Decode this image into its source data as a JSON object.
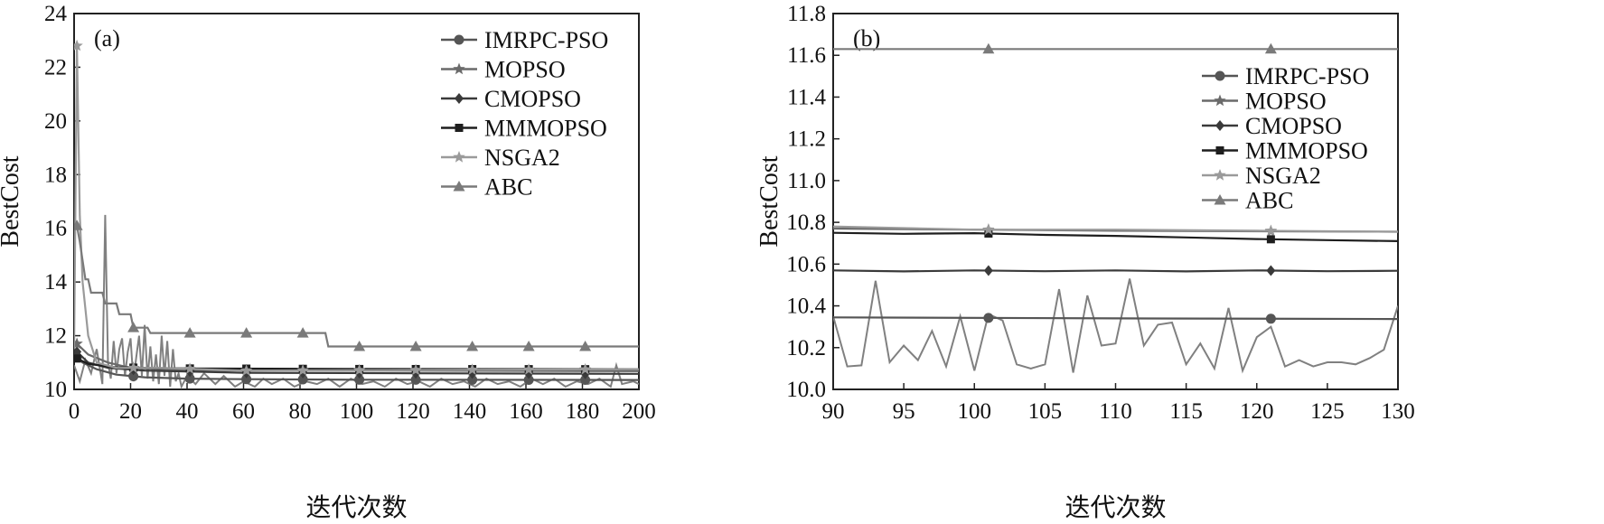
{
  "colors": {
    "IMRPC-PSO": "#555555",
    "MOPSO": "#6a6a6a",
    "CMOPSO": "#3a3a3a",
    "MMMOPSO": "#1e1e1e",
    "NSGA2": "#9a9a9a",
    "ABC": "#7a7a7a",
    "noise": "#808080"
  },
  "chart_data": [
    {
      "type": "line",
      "panel_label": "(a)",
      "title": "",
      "xlabel": "迭代次数",
      "ylabel": "BestCost",
      "xlim": [
        0,
        200
      ],
      "ylim": [
        10,
        24
      ],
      "xticks": [
        0,
        20,
        40,
        60,
        80,
        100,
        120,
        140,
        160,
        180,
        200
      ],
      "yticks": [
        10,
        12,
        14,
        16,
        18,
        20,
        22,
        24
      ],
      "legend_position": "top-right",
      "marker_x": [
        1,
        21,
        41,
        61,
        81,
        101,
        121,
        141,
        161,
        181
      ],
      "series": [
        {
          "name": "IMRPC-PSO",
          "marker": "circle",
          "points": [
            [
              0,
              11.3
            ],
            [
              3,
              11.0
            ],
            [
              8,
              10.75
            ],
            [
              15,
              10.55
            ],
            [
              25,
              10.45
            ],
            [
              40,
              10.4
            ],
            [
              60,
              10.38
            ],
            [
              100,
              10.36
            ],
            [
              200,
              10.35
            ]
          ]
        },
        {
          "name": "MOPSO",
          "marker": "star",
          "points": [
            [
              0,
              11.8
            ],
            [
              5,
              11.3
            ],
            [
              12,
              11.0
            ],
            [
              20,
              10.8
            ],
            [
              40,
              10.72
            ],
            [
              100,
              10.7
            ],
            [
              200,
              10.68
            ]
          ]
        },
        {
          "name": "CMOPSO",
          "marker": "diamond",
          "points": [
            [
              0,
              11.5
            ],
            [
              5,
              11.0
            ],
            [
              12,
              10.8
            ],
            [
              25,
              10.7
            ],
            [
              60,
              10.62
            ],
            [
              120,
              10.6
            ],
            [
              200,
              10.58
            ]
          ]
        },
        {
          "name": "MMMOPSO",
          "marker": "square",
          "points": [
            [
              0,
              11.2
            ],
            [
              5,
              10.95
            ],
            [
              15,
              10.82
            ],
            [
              40,
              10.78
            ],
            [
              100,
              10.76
            ],
            [
              200,
              10.75
            ]
          ]
        },
        {
          "name": "NSGA2",
          "marker": "star",
          "points": [
            [
              0,
              11.5
            ],
            [
              1,
              22.8
            ],
            [
              2,
              16.5
            ],
            [
              3,
              14.0
            ],
            [
              5,
              12.0
            ],
            [
              8,
              11.0
            ],
            [
              15,
              10.8
            ],
            [
              30,
              10.8
            ],
            [
              60,
              10.7
            ],
            [
              200,
              10.75
            ]
          ]
        },
        {
          "name": "ABC",
          "marker": "triangle",
          "points": [
            [
              0,
              16.1
            ],
            [
              1,
              16.1
            ],
            [
              2,
              15.5
            ],
            [
              4,
              14.1
            ],
            [
              5,
              14.1
            ],
            [
              6,
              13.6
            ],
            [
              10,
              13.6
            ],
            [
              11,
              13.2
            ],
            [
              15,
              13.2
            ],
            [
              16,
              12.8
            ],
            [
              20,
              12.8
            ],
            [
              21,
              12.3
            ],
            [
              26,
              12.3
            ],
            [
              27,
              12.1
            ],
            [
              89,
              12.1
            ],
            [
              90,
              11.6
            ],
            [
              200,
              11.6
            ]
          ]
        }
      ],
      "noise": {
        "points": [
          [
            0,
            10.9
          ],
          [
            2,
            10.3
          ],
          [
            4,
            11.1
          ],
          [
            6,
            10.6
          ],
          [
            8,
            11.5
          ],
          [
            10,
            10.2
          ],
          [
            11,
            16.5
          ],
          [
            12,
            11.0
          ],
          [
            13,
            10.4
          ],
          [
            14,
            11.8
          ],
          [
            15,
            10.6
          ],
          [
            16,
            11.5
          ],
          [
            17,
            11.9
          ],
          [
            18,
            10.5
          ],
          [
            19,
            11.4
          ],
          [
            20,
            11.9
          ],
          [
            21,
            10.3
          ],
          [
            22,
            11.2
          ],
          [
            23,
            12.0
          ],
          [
            24,
            10.5
          ],
          [
            25,
            12.4
          ],
          [
            26,
            10.4
          ],
          [
            27,
            11.6
          ],
          [
            28,
            10.3
          ],
          [
            29,
            11.3
          ],
          [
            30,
            10.2
          ],
          [
            31,
            12.0
          ],
          [
            32,
            10.5
          ],
          [
            33,
            11.8
          ],
          [
            34,
            10.1
          ],
          [
            35,
            11.5
          ],
          [
            36,
            10.3
          ],
          [
            37,
            10.6
          ],
          [
            38,
            10.1
          ],
          [
            40,
            10.5
          ],
          [
            43,
            10.2
          ],
          [
            46,
            10.6
          ],
          [
            50,
            10.2
          ],
          [
            53,
            10.5
          ],
          [
            57,
            10.1
          ],
          [
            60,
            10.3
          ],
          [
            64,
            10.1
          ],
          [
            67,
            10.4
          ],
          [
            70,
            10.2
          ],
          [
            74,
            10.4
          ],
          [
            78,
            10.1
          ],
          [
            82,
            10.3
          ],
          [
            86,
            10.2
          ],
          [
            90,
            10.4
          ],
          [
            94,
            10.1
          ],
          [
            98,
            10.4
          ],
          [
            102,
            10.2
          ],
          [
            106,
            10.3
          ],
          [
            110,
            10.1
          ],
          [
            114,
            10.4
          ],
          [
            118,
            10.2
          ],
          [
            122,
            10.3
          ],
          [
            126,
            10.1
          ],
          [
            130,
            10.4
          ],
          [
            134,
            10.2
          ],
          [
            138,
            10.3
          ],
          [
            142,
            10.1
          ],
          [
            146,
            10.4
          ],
          [
            150,
            10.2
          ],
          [
            154,
            10.3
          ],
          [
            158,
            10.1
          ],
          [
            162,
            10.4
          ],
          [
            166,
            10.2
          ],
          [
            170,
            10.4
          ],
          [
            174,
            10.1
          ],
          [
            178,
            10.3
          ],
          [
            182,
            10.2
          ],
          [
            186,
            10.4
          ],
          [
            190,
            10.1
          ],
          [
            192,
            10.9
          ],
          [
            194,
            10.2
          ],
          [
            198,
            10.3
          ],
          [
            200,
            10.2
          ]
        ]
      }
    },
    {
      "type": "line",
      "panel_label": "(b)",
      "title": "",
      "xlabel": "迭代次数",
      "ylabel": "BestCost",
      "xlim": [
        90,
        130
      ],
      "ylim": [
        10.0,
        11.8
      ],
      "xticks": [
        90,
        95,
        100,
        105,
        110,
        115,
        120,
        125,
        130
      ],
      "yticks": [
        10.0,
        10.2,
        10.4,
        10.6,
        10.8,
        11.0,
        11.2,
        11.4,
        11.6,
        11.8
      ],
      "legend_position": "top-right",
      "marker_x": [
        101,
        121
      ],
      "series": [
        {
          "name": "IMRPC-PSO",
          "marker": "circle",
          "points": [
            [
              90,
              10.345
            ],
            [
              110,
              10.34
            ],
            [
              130,
              10.337
            ]
          ]
        },
        {
          "name": "MOPSO",
          "marker": "star",
          "points": [
            [
              90,
              10.77
            ],
            [
              110,
              10.76
            ],
            [
              130,
              10.755
            ]
          ]
        },
        {
          "name": "CMOPSO",
          "marker": "diamond",
          "points": [
            [
              90,
              10.57
            ],
            [
              95,
              10.565
            ],
            [
              100,
              10.57
            ],
            [
              105,
              10.566
            ],
            [
              110,
              10.57
            ],
            [
              115,
              10.565
            ],
            [
              120,
              10.57
            ],
            [
              125,
              10.566
            ],
            [
              130,
              10.568
            ]
          ]
        },
        {
          "name": "MMMOPSO",
          "marker": "square",
          "points": [
            [
              90,
              10.75
            ],
            [
              95,
              10.745
            ],
            [
              100,
              10.748
            ],
            [
              105,
              10.74
            ],
            [
              110,
              10.735
            ],
            [
              115,
              10.728
            ],
            [
              120,
              10.72
            ],
            [
              125,
              10.715
            ],
            [
              130,
              10.71
            ]
          ]
        },
        {
          "name": "NSGA2",
          "marker": "star",
          "points": [
            [
              90,
              10.78
            ],
            [
              100,
              10.765
            ],
            [
              110,
              10.765
            ],
            [
              120,
              10.76
            ],
            [
              130,
              10.755
            ]
          ]
        },
        {
          "name": "ABC",
          "marker": "triangle",
          "points": [
            [
              90,
              11.63
            ],
            [
              130,
              11.63
            ]
          ]
        }
      ],
      "noise": {
        "points": [
          [
            90,
            10.35
          ],
          [
            91,
            10.11
          ],
          [
            92,
            10.115
          ],
          [
            93,
            10.52
          ],
          [
            94,
            10.13
          ],
          [
            95,
            10.21
          ],
          [
            96,
            10.14
          ],
          [
            97,
            10.28
          ],
          [
            98,
            10.11
          ],
          [
            99,
            10.35
          ],
          [
            100,
            10.09
          ],
          [
            101,
            10.36
          ],
          [
            102,
            10.33
          ],
          [
            103,
            10.12
          ],
          [
            104,
            10.1
          ],
          [
            105,
            10.12
          ],
          [
            106,
            10.48
          ],
          [
            107,
            10.08
          ],
          [
            108,
            10.45
          ],
          [
            109,
            10.21
          ],
          [
            110,
            10.22
          ],
          [
            111,
            10.53
          ],
          [
            112,
            10.21
          ],
          [
            113,
            10.31
          ],
          [
            114,
            10.32
          ],
          [
            115,
            10.12
          ],
          [
            116,
            10.22
          ],
          [
            117,
            10.1
          ],
          [
            118,
            10.39
          ],
          [
            119,
            10.09
          ],
          [
            120,
            10.25
          ],
          [
            121,
            10.3
          ],
          [
            122,
            10.11
          ],
          [
            123,
            10.14
          ],
          [
            124,
            10.11
          ],
          [
            125,
            10.13
          ],
          [
            126,
            10.13
          ],
          [
            127,
            10.12
          ],
          [
            128,
            10.15
          ],
          [
            129,
            10.19
          ],
          [
            130,
            10.4
          ]
        ]
      }
    }
  ]
}
